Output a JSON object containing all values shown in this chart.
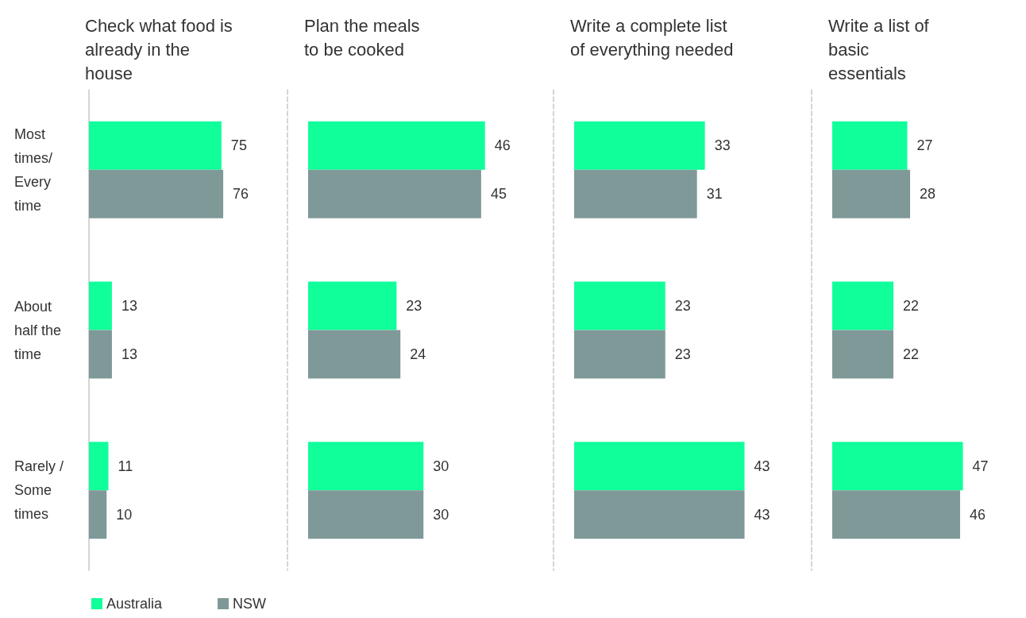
{
  "chart_data": [
    {
      "type": "bar",
      "orientation": "horizontal",
      "title": "Check what food is already in the house",
      "categories": [
        "Most times/ Every time",
        "About half the time",
        "Rarely /Some times"
      ],
      "series": [
        {
          "name": "Australia",
          "color": "#10ff9a",
          "values": [
            75,
            13,
            11
          ]
        },
        {
          "name": "NSW",
          "color": "#7f9898",
          "values": [
            76,
            13,
            10
          ]
        }
      ],
      "data_labels": true,
      "legend": "bottom",
      "tick_labels": "y"
    },
    {
      "type": "bar",
      "orientation": "horizontal",
      "title": "Plan the meals to be cooked",
      "categories": [
        "Most times/ Every time",
        "About half the time",
        "Rarely /Some times"
      ],
      "series": [
        {
          "color": "#10ff9a",
          "values": [
            46,
            23,
            30
          ]
        },
        {
          "color": "#7f9898",
          "values": [
            45,
            24,
            30
          ]
        }
      ],
      "data_labels": true,
      "tick_labels": false
    },
    {
      "type": "bar",
      "orientation": "horizontal",
      "title": "Write a complete list of everything needed",
      "categories": [
        "Most times/ Every time",
        "About half the time",
        "Rarely /Some times"
      ],
      "series": [
        {
          "color": "#10ff9a",
          "values": [
            33,
            23,
            43
          ]
        },
        {
          "color": "#7f9898",
          "values": [
            31,
            23,
            43
          ]
        }
      ],
      "data_labels": true,
      "tick_labels": false
    },
    {
      "type": "bar",
      "orientation": "horizontal",
      "title": "Write a list of basic essentials",
      "categories": [
        "Most times/ Every time",
        "About half the time",
        "Rarely /Some times"
      ],
      "series": [
        {
          "color": "#10ff9a",
          "values": [
            27,
            22,
            47
          ]
        },
        {
          "color": "#7f9898",
          "values": [
            28,
            22,
            46
          ]
        }
      ],
      "data_labels": true,
      "tick_labels": false
    }
  ]
}
